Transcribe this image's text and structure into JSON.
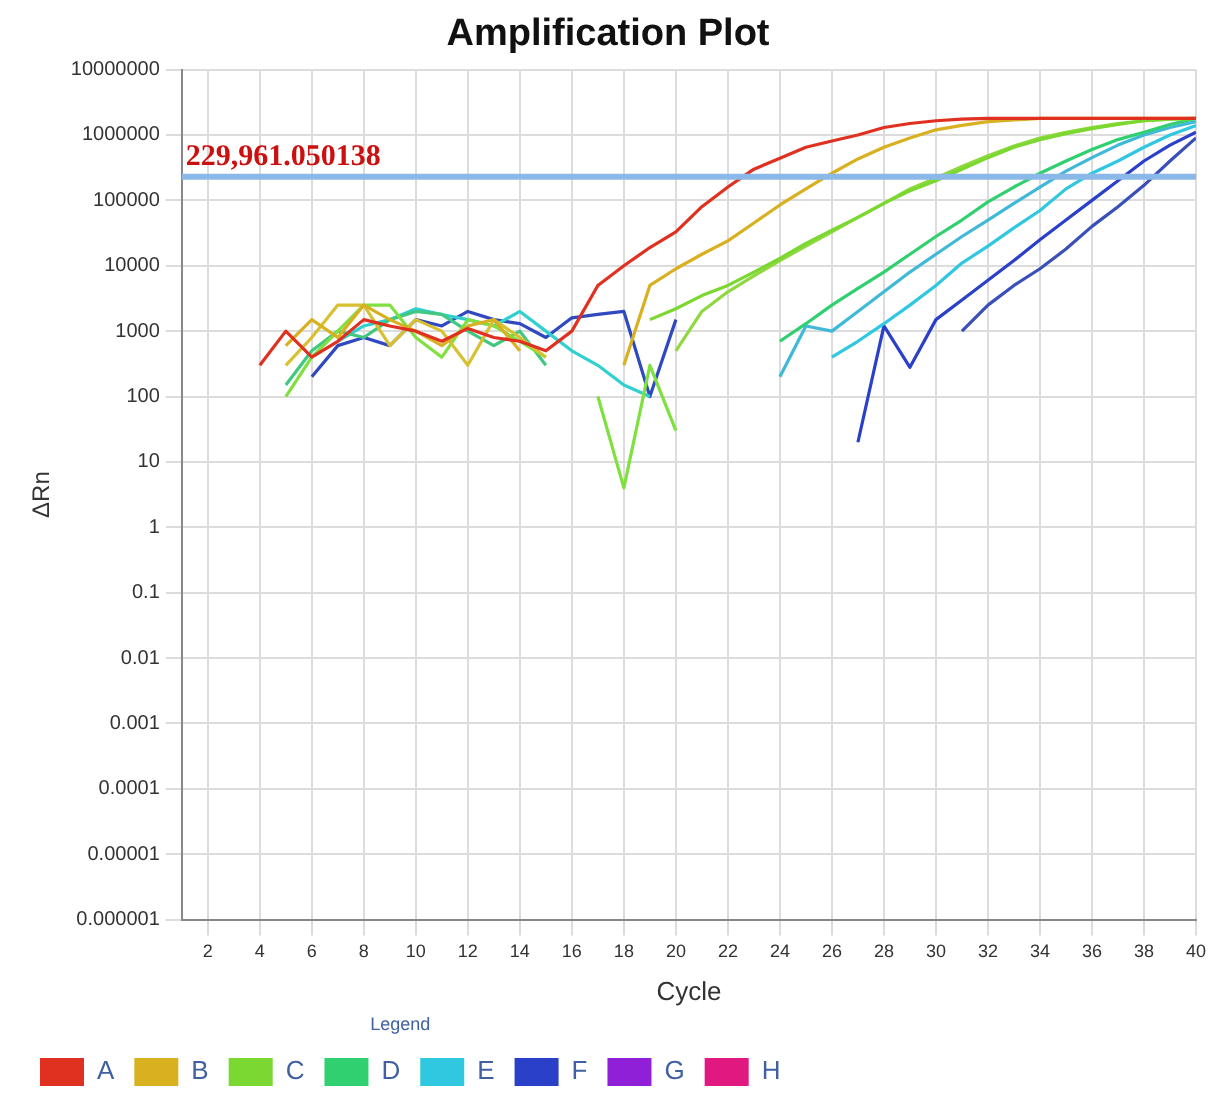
{
  "chart_data": {
    "type": "line",
    "title": "Amplification Plot",
    "xlabel": "Cycle",
    "ylabel": "ΔRn",
    "legend_title": "Legend",
    "legend": "bottom",
    "grid": true,
    "log": "y",
    "marker": "none",
    "line_style": "solid",
    "xlim": [
      1,
      40
    ],
    "xticks": [
      2,
      4,
      6,
      8,
      10,
      12,
      14,
      16,
      18,
      20,
      22,
      24,
      26,
      28,
      30,
      32,
      34,
      36,
      38,
      40
    ],
    "ylim": [
      1e-06,
      10000000
    ],
    "yticks": [
      {
        "value": 1e-06,
        "label": "0.000001"
      },
      {
        "value": 1e-05,
        "label": "0.00001"
      },
      0.0001,
      0.001,
      0.01,
      0.1,
      1,
      10,
      100,
      1000,
      10000,
      100000,
      1000000,
      10000000
    ],
    "ref_lines": [
      {
        "axis": "y",
        "value": 229961.050138,
        "label": "229,961.050138",
        "color": "#8ab8e8"
      }
    ],
    "series": [
      {
        "name": "A",
        "color": "#e03020",
        "x": [
          4,
          5,
          6,
          7,
          8,
          9,
          10,
          11,
          12,
          13,
          14,
          15,
          16,
          17,
          18,
          19,
          20,
          21,
          22,
          23,
          24,
          25,
          26,
          27,
          28,
          29,
          30,
          31,
          32,
          33,
          34,
          35,
          36,
          37,
          38,
          39,
          40
        ],
        "values": [
          300,
          1000,
          400,
          700,
          1500,
          1200,
          1000,
          700,
          1100,
          800,
          700,
          500,
          1000,
          5000,
          10000,
          19000,
          33000,
          80000,
          160000,
          300000,
          440000,
          650000,
          810000,
          1000000,
          1300000,
          1500000,
          1650000,
          1750000,
          1800000,
          1800000,
          1800000,
          1800000,
          1800000,
          1800000,
          1800000,
          1800000,
          1800000
        ]
      },
      {
        "name": "B",
        "color": "#d8b020",
        "x": [
          5,
          6,
          7,
          8,
          9,
          10,
          11,
          12,
          13,
          14,
          15,
          16,
          17,
          18,
          19,
          20,
          21,
          22,
          23,
          24,
          25,
          26,
          27,
          28,
          29,
          30,
          31,
          32,
          33,
          34,
          35,
          36,
          37,
          38,
          39,
          40
        ],
        "values": [
          600,
          1500,
          800,
          2500,
          1500,
          1000,
          600,
          1200,
          1500,
          500,
          null,
          null,
          null,
          300,
          5000,
          9000,
          15000,
          24000,
          45000,
          85000,
          150000,
          260000,
          430000,
          650000,
          900000,
          1200000,
          1400000,
          1600000,
          1700000,
          1800000,
          1800000,
          1800000,
          1800000,
          1800000,
          1800000,
          1800000
        ]
      },
      {
        "color": "#d8c030",
        "x": [
          5,
          6,
          7,
          8,
          9,
          10,
          11,
          12,
          13,
          14,
          15
        ],
        "values": [
          300,
          800,
          2500,
          2500,
          600,
          1500,
          1000,
          300,
          1500,
          800,
          400
        ]
      },
      {
        "name": "C",
        "color": "#7ad830",
        "x": [
          19,
          20,
          21,
          22,
          23,
          24,
          25,
          26,
          27,
          28,
          29,
          30,
          31,
          32,
          33,
          34,
          35,
          36,
          37,
          38,
          39,
          40
        ],
        "values": [
          1500,
          2200,
          3500,
          5000,
          8000,
          13000,
          22000,
          35000,
          55000,
          90000,
          140000,
          200000,
          300000,
          450000,
          650000,
          850000,
          1050000,
          1250000,
          1450000,
          1650000,
          1750000,
          1800000
        ]
      },
      {
        "color": "#90d840",
        "x": [
          20,
          21,
          22,
          23,
          24,
          25,
          26,
          27,
          28,
          29,
          30,
          31,
          32,
          33,
          34,
          35,
          36,
          37,
          38,
          39,
          40
        ],
        "values": [
          500,
          2000,
          4000,
          7000,
          12000,
          20000,
          33000,
          55000,
          90000,
          150000,
          220000,
          330000,
          480000,
          680000,
          900000,
          1100000,
          1300000,
          1500000,
          1650000,
          1750000,
          1800000
        ]
      },
      {
        "color": "#80e040",
        "x": [
          5,
          6,
          7,
          8,
          9,
          10,
          11,
          12,
          13,
          14,
          15,
          16,
          17,
          18,
          19,
          20
        ],
        "values": [
          100,
          400,
          1000,
          2500,
          2500,
          800,
          400,
          1500,
          1200,
          700,
          400,
          null,
          100,
          4,
          300,
          30
        ]
      },
      {
        "name": "D",
        "color": "#30d070",
        "x": [
          24,
          25,
          26,
          27,
          28,
          29,
          30,
          31,
          32,
          33,
          34,
          35,
          36,
          37,
          38,
          39,
          40
        ],
        "values": [
          700,
          1300,
          2500,
          4500,
          8000,
          15000,
          28000,
          50000,
          95000,
          160000,
          260000,
          400000,
          600000,
          850000,
          1100000,
          1450000,
          1800000
        ]
      },
      {
        "color": "#40c880",
        "x": [
          5,
          6,
          7,
          8,
          9,
          10,
          11,
          12,
          13,
          14,
          15
        ],
        "values": [
          150,
          500,
          1000,
          800,
          1500,
          2000,
          1800,
          1000,
          600,
          1000,
          300
        ]
      },
      {
        "name": "E",
        "color": "#30c8e0",
        "x": [
          26,
          27,
          28,
          29,
          30,
          31,
          32,
          33,
          34,
          35,
          36,
          37,
          38,
          39,
          40
        ],
        "values": [
          400,
          700,
          1300,
          2500,
          5000,
          11000,
          20000,
          38000,
          70000,
          150000,
          260000,
          400000,
          650000,
          1000000,
          1400000
        ]
      },
      {
        "color": "#40b8d8",
        "x": [
          24,
          25,
          26,
          27,
          28,
          29,
          30,
          31,
          32,
          33,
          34,
          35,
          36,
          37,
          38,
          39,
          40
        ],
        "values": [
          200,
          1200,
          1000,
          2000,
          4000,
          8000,
          15000,
          28000,
          50000,
          90000,
          160000,
          280000,
          450000,
          700000,
          1000000,
          1300000,
          1600000
        ]
      },
      {
        "color": "#30d0d0",
        "x": [
          7,
          8,
          9,
          10,
          11,
          12,
          13,
          14,
          15,
          16,
          17,
          18,
          19
        ],
        "values": [
          700,
          1200,
          1500,
          2200,
          1800,
          1500,
          1200,
          2000,
          1000,
          500,
          300,
          150,
          100
        ]
      },
      {
        "name": "F",
        "color": "#2a40c8",
        "x": [
          27,
          28,
          29,
          30,
          31,
          32,
          33,
          34,
          35,
          36,
          37,
          38,
          39,
          40
        ],
        "values": [
          20,
          1200,
          280,
          1500,
          3000,
          6000,
          12000,
          25000,
          50000,
          100000,
          200000,
          400000,
          700000,
          1100000
        ]
      },
      {
        "color": "#3a50b8",
        "x": [
          31,
          32,
          33,
          34,
          35,
          36,
          37,
          38,
          39,
          40
        ],
        "values": [
          1000,
          2500,
          5000,
          9000,
          18000,
          40000,
          80000,
          170000,
          400000,
          900000
        ]
      },
      {
        "color": "#3048c0",
        "x": [
          6,
          7,
          8,
          9,
          10,
          11,
          12,
          13,
          14,
          15,
          16,
          17,
          18,
          19,
          20
        ],
        "values": [
          200,
          600,
          800,
          600,
          1500,
          1200,
          2000,
          1500,
          1300,
          800,
          1600,
          1800,
          2000,
          100,
          1500
        ]
      },
      {
        "name": "G",
        "color": "#9020d8"
      },
      {
        "name": "H",
        "color": "#e01880"
      }
    ]
  }
}
